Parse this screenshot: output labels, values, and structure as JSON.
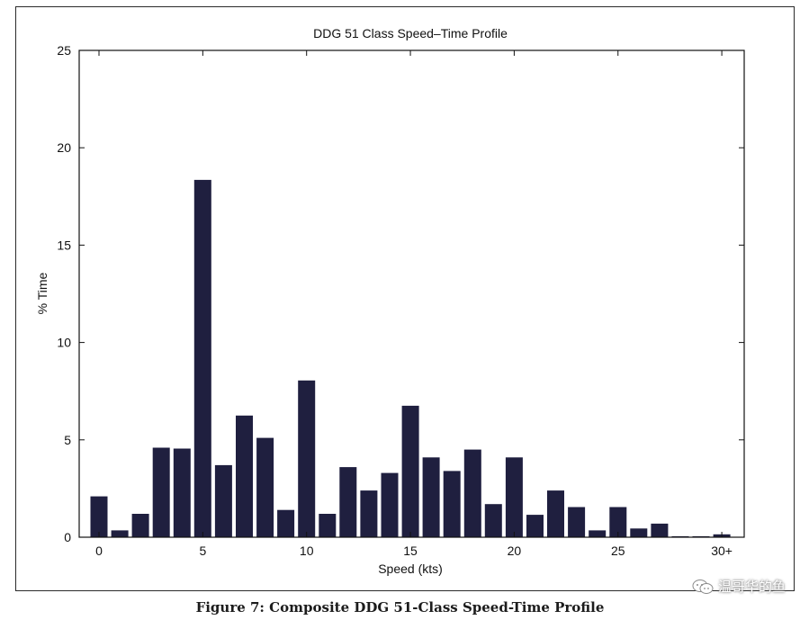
{
  "caption": "Figure 7: Composite DDG 51-Class Speed-Time Profile",
  "watermark": "温哥华的鱼",
  "colors": {
    "bar": "#1f1f3f",
    "axis": "#111111",
    "background": "#ffffff"
  },
  "chart_data": {
    "type": "bar",
    "title": "DDG 51 Class Speed–Time Profile",
    "xlabel": "Speed (kts)",
    "ylabel": "% Time",
    "categories": [
      "0",
      "1",
      "2",
      "3",
      "4",
      "5",
      "6",
      "7",
      "8",
      "9",
      "10",
      "11",
      "12",
      "13",
      "14",
      "15",
      "16",
      "17",
      "18",
      "19",
      "20",
      "21",
      "22",
      "23",
      "24",
      "25",
      "26",
      "27",
      "28",
      "29",
      "30+"
    ],
    "values": [
      2.1,
      0.35,
      1.2,
      4.6,
      4.55,
      18.35,
      3.7,
      6.25,
      5.1,
      1.4,
      8.05,
      1.2,
      3.6,
      2.4,
      3.3,
      6.75,
      4.1,
      3.4,
      4.5,
      1.7,
      4.1,
      1.15,
      2.4,
      1.55,
      0.35,
      1.55,
      0.45,
      0.7,
      0.05,
      0.05,
      0.15
    ],
    "xticks": [
      "0",
      "5",
      "10",
      "15",
      "20",
      "25",
      "30+"
    ],
    "xtick_positions": [
      0,
      5,
      10,
      15,
      20,
      25,
      30
    ],
    "yticks": [
      "0",
      "5",
      "10",
      "15",
      "20",
      "25"
    ],
    "ylim": [
      0,
      25
    ],
    "grid": false
  }
}
